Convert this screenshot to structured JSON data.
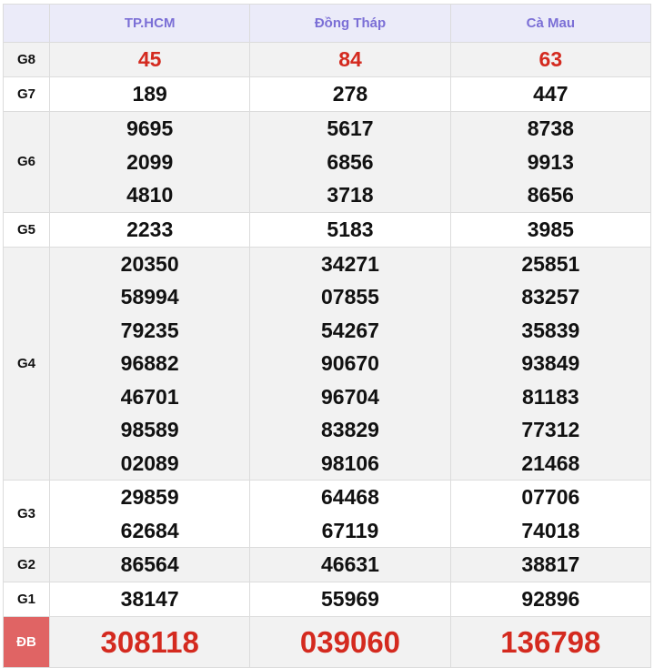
{
  "header": {
    "provinces": [
      "TP.HCM",
      "Đồng Tháp",
      "Cà Mau"
    ]
  },
  "rows": [
    {
      "label": "G8",
      "values": [
        [
          "45"
        ],
        [
          "84"
        ],
        [
          "63"
        ]
      ]
    },
    {
      "label": "G7",
      "values": [
        [
          "189"
        ],
        [
          "278"
        ],
        [
          "447"
        ]
      ]
    },
    {
      "label": "G6",
      "values": [
        [
          "9695",
          "2099",
          "4810"
        ],
        [
          "5617",
          "6856",
          "3718"
        ],
        [
          "8738",
          "9913",
          "8656"
        ]
      ]
    },
    {
      "label": "G5",
      "values": [
        [
          "2233"
        ],
        [
          "5183"
        ],
        [
          "3985"
        ]
      ]
    },
    {
      "label": "G4",
      "values": [
        [
          "20350",
          "58994",
          "79235",
          "96882",
          "46701",
          "98589",
          "02089"
        ],
        [
          "34271",
          "07855",
          "54267",
          "90670",
          "96704",
          "83829",
          "98106"
        ],
        [
          "25851",
          "83257",
          "35839",
          "93849",
          "81183",
          "77312",
          "21468"
        ]
      ]
    },
    {
      "label": "G3",
      "values": [
        [
          "29859",
          "62684"
        ],
        [
          "64468",
          "67119"
        ],
        [
          "07706",
          "74018"
        ]
      ]
    },
    {
      "label": "G2",
      "values": [
        [
          "86564"
        ],
        [
          "46631"
        ],
        [
          "38817"
        ]
      ]
    },
    {
      "label": "G1",
      "values": [
        [
          "38147"
        ],
        [
          "55969"
        ],
        [
          "92896"
        ]
      ]
    },
    {
      "label": "ĐB",
      "values": [
        [
          "308118"
        ],
        [
          "039060"
        ],
        [
          "136798"
        ]
      ]
    }
  ],
  "colors": {
    "header_text": "#7b6fd6",
    "special_red": "#d42a1f",
    "db_label_bg": "#e06464"
  }
}
